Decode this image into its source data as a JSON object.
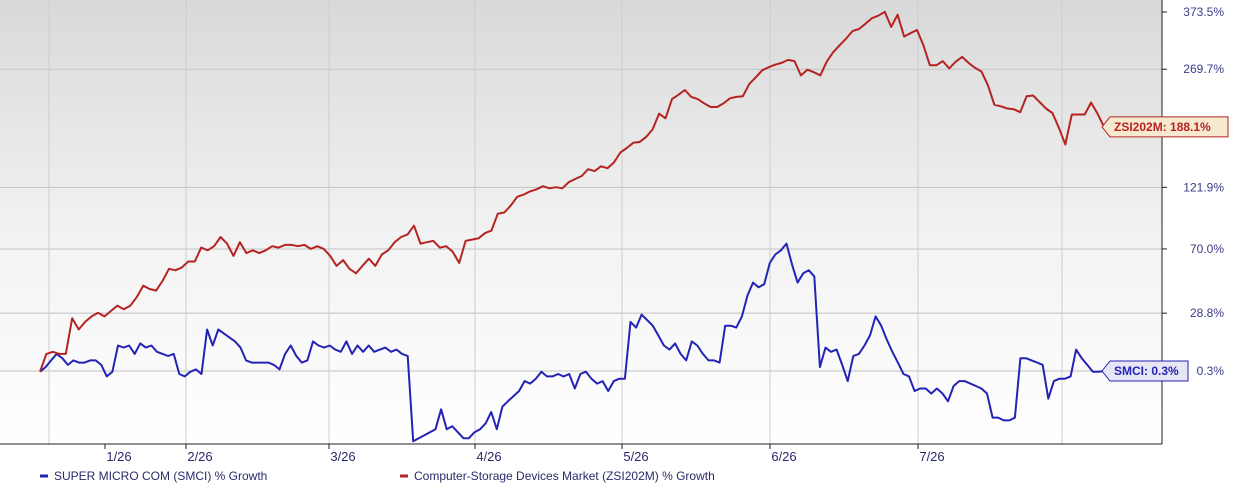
{
  "chart_data": {
    "type": "line",
    "title": "",
    "xlabel": "",
    "ylabel": "",
    "x_ticks": [
      "1/26",
      "2/26",
      "3/26",
      "4/26",
      "5/26",
      "6/26",
      "7/26"
    ],
    "y_ticks": [
      "373.5%",
      "269.7%",
      "188.1%",
      "121.9%",
      "70.0%",
      "28.8%",
      "0.3%"
    ],
    "y_scale": "log",
    "ylim": [
      -27,
      374
    ],
    "grid": true,
    "legend_position": "bottom-left",
    "series": [
      {
        "name": "SUPER MICRO COM (SMCI) % Growth",
        "color": "#2323b5",
        "last_label": "SMCI: 0.3%",
        "values": [
          0,
          2,
          5,
          8,
          6,
          3,
          5,
          4,
          4,
          5,
          5,
          3,
          -2,
          0,
          12,
          11,
          12,
          8,
          13,
          11,
          12,
          9,
          8,
          7,
          8,
          -1,
          -2,
          0,
          1,
          -1,
          20,
          12,
          20,
          18,
          16,
          14,
          11,
          5,
          4,
          4,
          4,
          4,
          3,
          1,
          8,
          12,
          7,
          4,
          5,
          14,
          12,
          11,
          12,
          10,
          9,
          14,
          8,
          12,
          9,
          12,
          9,
          10,
          11,
          9,
          10,
          8,
          7,
          -26,
          -25,
          -24,
          -23,
          -22,
          -15,
          -22,
          -21,
          -23,
          -25,
          -25,
          -23,
          -22,
          -20,
          -16,
          -22,
          -14,
          -12,
          -10,
          -8,
          -4,
          -5,
          -3,
          0,
          -2,
          -2,
          -1,
          -2,
          -1,
          -7,
          -1,
          0,
          -3,
          -5,
          -4,
          -8,
          -4,
          -3,
          -3,
          24,
          21,
          28,
          25,
          22,
          17,
          12,
          10,
          13,
          8,
          5,
          14,
          12,
          8,
          5,
          5,
          4,
          22,
          22,
          21,
          27,
          39,
          47,
          44,
          46,
          60,
          66,
          69,
          74,
          59,
          47,
          53,
          55,
          51,
          2,
          11,
          9,
          10,
          3,
          -4,
          7,
          8,
          12,
          17,
          27,
          22,
          15,
          9,
          4,
          -1,
          -2,
          -8,
          -7,
          -7,
          -9,
          -7,
          -9,
          -12,
          -6,
          -4,
          -4,
          -5,
          -6,
          -7,
          -9,
          -18,
          -18,
          -19,
          -19,
          -18,
          6,
          6,
          5,
          4,
          3,
          -11,
          -4,
          -3,
          -3,
          -2,
          10,
          6,
          3,
          0,
          0,
          0.3
        ]
      },
      {
        "name": "Computer-Storage Devices Market (ZSI202M) % Growth",
        "color": "#b52323",
        "last_label": "ZSI202M: 188.1%",
        "values": [
          0,
          8,
          9,
          8,
          8,
          26,
          20,
          24,
          27,
          29,
          27,
          30,
          33,
          31,
          33,
          38,
          45,
          43,
          42,
          48,
          56,
          55,
          57,
          61,
          61,
          71,
          69,
          72,
          79,
          74,
          65,
          75,
          67,
          69,
          67,
          69,
          72,
          71,
          73,
          73,
          72,
          73,
          70,
          72,
          70,
          65,
          58,
          62,
          56,
          53,
          58,
          63,
          58,
          66,
          69,
          75,
          79,
          81,
          88,
          74,
          75,
          76,
          71,
          72,
          68,
          60,
          76,
          77,
          78,
          82,
          84,
          98,
          99,
          105,
          113,
          115,
          118,
          120,
          123,
          121,
          122,
          121,
          127,
          130,
          133,
          140,
          138,
          143,
          141,
          147,
          158,
          163,
          169,
          170,
          176,
          185,
          205,
          199,
          225,
          231,
          238,
          228,
          225,
          219,
          214,
          214,
          219,
          226,
          228,
          229,
          247,
          257,
          268,
          273,
          277,
          280,
          285,
          283,
          260,
          269,
          265,
          260,
          282,
          298,
          310,
          322,
          336,
          340,
          350,
          361,
          366,
          374,
          344,
          368,
          326,
          332,
          338,
          310,
          276,
          276,
          283,
          271,
          282,
          290,
          280,
          272,
          266,
          245,
          217,
          215,
          212,
          211,
          207,
          229,
          230,
          221,
          212,
          206,
          187,
          167,
          204,
          204,
          204,
          220,
          205,
          188.1
        ]
      }
    ]
  }
}
